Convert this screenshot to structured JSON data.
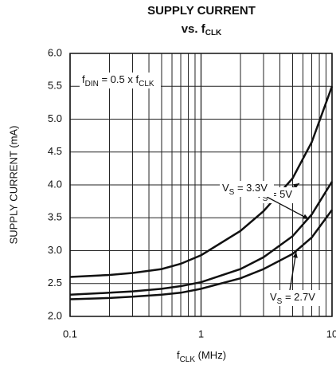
{
  "chart_data": {
    "type": "line",
    "title": "SUPPLY CURRENT",
    "subtitle": {
      "text": "vs. f",
      "sub": "CLK"
    },
    "x_label": {
      "text": "f",
      "sub": "CLK",
      "rest": " (MHz)"
    },
    "y_label": "SUPPLY CURRENT (mA)",
    "annotation": {
      "text": "f",
      "sub": "DIN",
      "mid": " = 0.5 x f",
      "sub2": "CLK"
    },
    "x": [
      0.1,
      0.2,
      0.3,
      0.5,
      0.7,
      1,
      2,
      3,
      5,
      7,
      10
    ],
    "series": [
      {
        "name": [
          "V",
          "S",
          " = 5V"
        ],
        "color": "#111111",
        "values": [
          2.6,
          2.63,
          2.66,
          2.72,
          2.8,
          2.93,
          3.3,
          3.6,
          4.1,
          4.65,
          5.5
        ]
      },
      {
        "name": [
          "V",
          "S",
          " = 3.3V"
        ],
        "color": "#111111",
        "values": [
          2.33,
          2.36,
          2.38,
          2.42,
          2.46,
          2.52,
          2.72,
          2.9,
          3.22,
          3.55,
          4.05
        ]
      },
      {
        "name": [
          "V",
          "S",
          " = 2.7V"
        ],
        "color": "#111111",
        "values": [
          2.26,
          2.28,
          2.3,
          2.33,
          2.36,
          2.42,
          2.58,
          2.72,
          2.95,
          3.2,
          3.62
        ]
      }
    ],
    "xlim": [
      0.1,
      10
    ],
    "xticks": [
      0.1,
      1,
      10
    ],
    "log_x": true,
    "ylim": [
      2,
      6
    ],
    "yticks": [
      {
        "value": 2,
        "label": "2.0"
      },
      {
        "value": 2.5,
        "label": "2.5"
      },
      {
        "value": 3,
        "label": "3.0"
      },
      {
        "value": 3.5,
        "label": "3.5"
      },
      {
        "value": 4,
        "label": "4.0"
      },
      {
        "value": 4.5,
        "label": "4.5"
      },
      {
        "value": 5,
        "label": "5.0"
      },
      {
        "value": 5.5,
        "label": "5.5"
      },
      {
        "value": 6,
        "label": "6.0"
      }
    ],
    "grid": true
  }
}
